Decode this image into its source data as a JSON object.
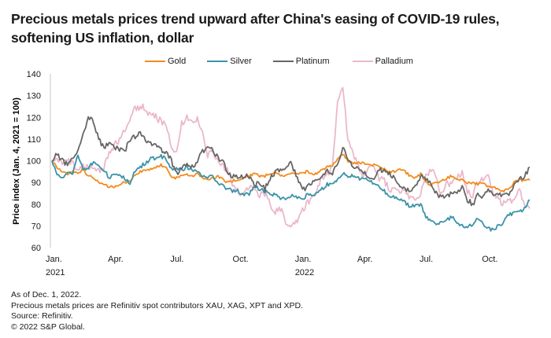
{
  "title": "Precious metals prices trend upward after China's easing of COVID-19 rules, softening US inflation, dollar",
  "legend": [
    {
      "name": "Gold",
      "color": "#F28C1E"
    },
    {
      "name": "Silver",
      "color": "#3A93A8"
    },
    {
      "name": "Platinum",
      "color": "#666666"
    },
    {
      "name": "Palladium",
      "color": "#EBB8CB"
    }
  ],
  "notes": [
    "As of Dec. 1, 2022.",
    "Precious metals prices are Refinitiv spot contributors XAU, XAG, XPT and XPD.",
    "Source: Refinitiv.",
    "© 2022 S&P Global."
  ],
  "chart_data": {
    "type": "line",
    "title": "Precious metals prices trend upward after China's easing of COVID-19 rules, softening US inflation, dollar",
    "xlabel": "",
    "ylabel": "Price index (Jan. 4, 2021 = 100)",
    "ylim": [
      60,
      140
    ],
    "yticks": [
      60,
      70,
      80,
      90,
      100,
      110,
      120,
      130,
      140
    ],
    "xlim_months": [
      0,
      23
    ],
    "xticks": [
      {
        "month": 0,
        "label": "Jan.",
        "sublabel": "2021"
      },
      {
        "month": 3,
        "label": "Apr.",
        "sublabel": ""
      },
      {
        "month": 6,
        "label": "Jul.",
        "sublabel": ""
      },
      {
        "month": 9,
        "label": "Oct.",
        "sublabel": ""
      },
      {
        "month": 12,
        "label": "Jan.",
        "sublabel": "2022"
      },
      {
        "month": 15,
        "label": "Apr.",
        "sublabel": ""
      },
      {
        "month": 18,
        "label": "Jul.",
        "sublabel": ""
      },
      {
        "month": 21,
        "label": "Oct.",
        "sublabel": ""
      }
    ],
    "grid": false,
    "legend_position": "top-center",
    "x_months": [
      0,
      0.25,
      0.5,
      0.75,
      1,
      1.25,
      1.5,
      1.75,
      2,
      2.25,
      2.5,
      2.75,
      3,
      3.25,
      3.5,
      3.75,
      4,
      4.25,
      4.5,
      4.75,
      5,
      5.25,
      5.5,
      5.75,
      6,
      6.25,
      6.5,
      6.75,
      7,
      7.25,
      7.5,
      7.75,
      8,
      8.25,
      8.5,
      8.75,
      9,
      9.25,
      9.5,
      9.75,
      10,
      10.25,
      10.5,
      10.75,
      11,
      11.25,
      11.5,
      11.75,
      12,
      12.25,
      12.5,
      12.75,
      13,
      13.25,
      13.5,
      13.75,
      14,
      14.25,
      14.5,
      14.75,
      15,
      15.25,
      15.5,
      15.75,
      16,
      16.25,
      16.5,
      16.75,
      17,
      17.25,
      17.5,
      17.75,
      18,
      18.25,
      18.5,
      18.75,
      19,
      19.25,
      19.5,
      19.75,
      20,
      20.25,
      20.5,
      20.75,
      21,
      21.25,
      21.5,
      21.75,
      22,
      22.25,
      22.5,
      22.75,
      23
    ],
    "series": [
      {
        "name": "Gold",
        "color": "#F28C1E",
        "values": [
          100,
          97,
          95,
          94,
          95,
          94,
          96,
          93,
          92,
          90,
          89,
          88,
          88,
          89,
          90,
          91,
          93,
          95,
          96,
          96,
          97,
          98,
          97,
          92,
          92,
          93,
          94,
          93,
          94,
          92,
          91,
          92,
          93,
          91,
          90,
          91,
          91,
          92,
          93,
          94,
          93,
          93,
          94,
          95,
          93,
          93,
          94,
          94,
          94,
          95,
          94,
          94,
          96,
          97,
          98,
          101,
          103,
          100,
          99,
          99,
          99,
          98,
          98,
          97,
          96,
          95,
          95,
          96,
          95,
          93,
          92,
          94,
          90,
          89,
          90,
          91,
          92,
          93,
          92,
          91,
          90,
          90,
          89,
          90,
          88,
          88,
          87,
          86,
          87,
          90,
          91,
          91,
          91
        ]
      },
      {
        "name": "Silver",
        "color": "#3A93A8",
        "values": [
          100,
          94,
          92,
          95,
          94,
          103,
          96,
          97,
          99,
          97,
          96,
          92,
          94,
          93,
          92,
          90,
          95,
          97,
          99,
          101,
          101,
          102,
          101,
          96,
          96,
          96,
          97,
          96,
          95,
          93,
          92,
          93,
          90,
          88,
          87,
          86,
          86,
          84,
          85,
          88,
          87,
          86,
          84,
          85,
          83,
          82,
          84,
          84,
          82,
          84,
          84,
          85,
          87,
          89,
          90,
          91,
          94,
          93,
          93,
          92,
          92,
          91,
          89,
          88,
          86,
          84,
          83,
          82,
          81,
          79,
          79,
          80,
          74,
          73,
          71,
          72,
          73,
          74,
          72,
          70,
          70,
          71,
          73,
          71,
          69,
          68,
          70,
          72,
          75,
          76,
          76,
          78,
          82
        ]
      },
      {
        "name": "Platinum",
        "color": "#666666",
        "values": [
          100,
          103,
          100,
          98,
          102,
          104,
          112,
          120,
          118,
          110,
          106,
          108,
          106,
          105,
          104,
          110,
          111,
          113,
          110,
          108,
          107,
          105,
          104,
          100,
          94,
          97,
          99,
          97,
          100,
          104,
          107,
          105,
          101,
          99,
          94,
          93,
          92,
          93,
          93,
          89,
          90,
          87,
          92,
          95,
          96,
          97,
          99,
          94,
          88,
          87,
          90,
          92,
          93,
          95,
          94,
          99,
          106,
          101,
          97,
          96,
          95,
          93,
          91,
          96,
          95,
          94,
          92,
          89,
          87,
          87,
          88,
          93,
          92,
          90,
          85,
          83,
          84,
          85,
          86,
          88,
          82,
          80,
          84,
          83,
          87,
          85,
          85,
          84,
          85,
          89,
          91,
          93,
          97
        ]
      },
      {
        "name": "Palladium",
        "color": "#EBB8CB",
        "values": [
          100,
          101,
          99,
          100,
          99,
          96,
          97,
          98,
          96,
          95,
          97,
          103,
          107,
          110,
          114,
          120,
          124,
          125,
          124,
          121,
          120,
          118,
          117,
          105,
          103,
          117,
          120,
          118,
          119,
          113,
          103,
          104,
          100,
          97,
          95,
          88,
          86,
          84,
          89,
          86,
          84,
          85,
          80,
          76,
          78,
          72,
          70,
          72,
          76,
          80,
          82,
          86,
          92,
          94,
          98,
          127,
          133,
          110,
          103,
          98,
          92,
          96,
          97,
          92,
          91,
          86,
          87,
          84,
          87,
          83,
          81,
          85,
          93,
          96,
          92,
          84,
          90,
          89,
          93,
          95,
          86,
          84,
          90,
          92,
          94,
          84,
          82,
          80,
          81,
          82,
          86,
          79,
          78
        ]
      }
    ]
  }
}
